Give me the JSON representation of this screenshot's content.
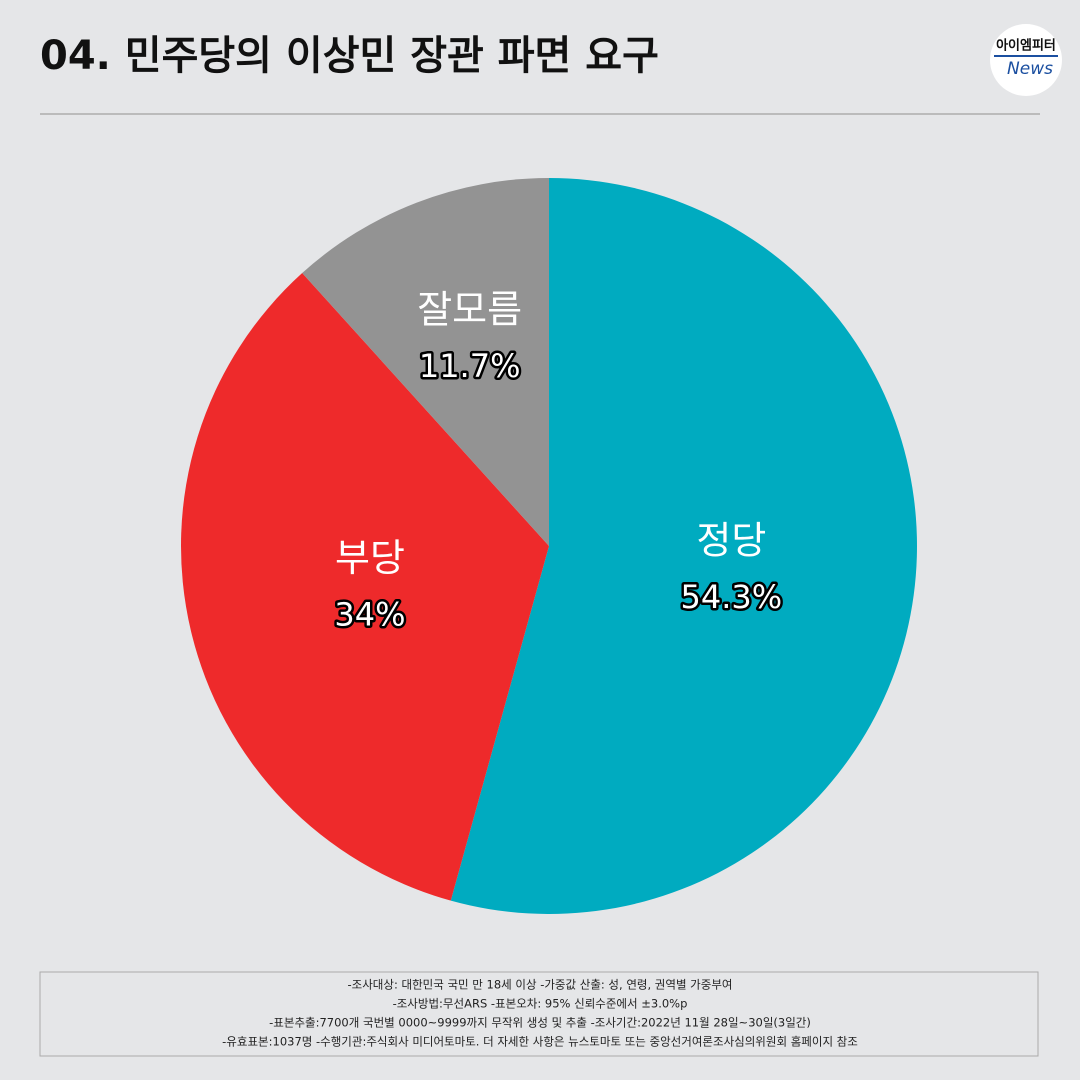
{
  "chart_data": {
    "type": "pie",
    "title": "04. 민주당의 이상민 장관 파면 요구",
    "logo": [
      "아이엠피터",
      "News"
    ],
    "categories": [
      "정당",
      "부당",
      "잘모름"
    ],
    "values": [
      54.3,
      34,
      11.7
    ],
    "value_labels": [
      "54.3%",
      "34%",
      "11.7%"
    ],
    "colors": [
      "#00abc0",
      "#ee2a2b",
      "#939393"
    ],
    "notes": [
      "-조사대상: 대한민국 국민 만 18세 이상  -가중값 산출: 성, 연령, 권역별 가중부여",
      "-조사방법:무선ARS -표본오차: 95% 신뢰수준에서 ±3.0%p",
      "-표본추출:7700개 국번별 0000~9999까지 무작위 생성 및 추출 -조사기간:2022년 11월 28일~30일(3일간)",
      "-유효표본:1037명 -수행기관:주식회사 미디어토마토. 더 자세한 사항은 뉴스토마토 또는 중앙선거여론조사심의위원회 홈페이지 참조"
    ]
  }
}
